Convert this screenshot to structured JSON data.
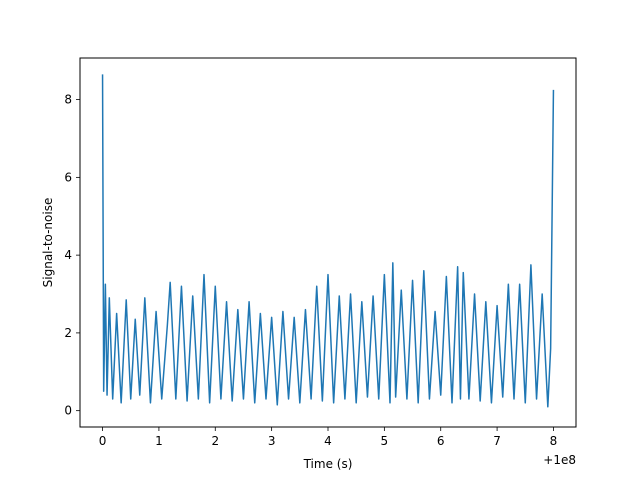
{
  "chart_data": {
    "type": "line",
    "title": "",
    "xlabel": "Time (s)",
    "ylabel": "Signal-to-noise",
    "x_offset_label": "+1e8",
    "xlim": [
      -0.4,
      8.4
    ],
    "ylim": [
      -0.42,
      9.07
    ],
    "xticks": [
      0,
      1,
      2,
      3,
      4,
      5,
      6,
      7,
      8
    ],
    "yticks": [
      0,
      2,
      4,
      6,
      8
    ],
    "grid": false,
    "legend": "none",
    "color": "#1f77b4",
    "series": [
      {
        "x": [
          0.0,
          0.02,
          0.05,
          0.08,
          0.12,
          0.18,
          0.25,
          0.33,
          0.42,
          0.5,
          0.58,
          0.66,
          0.75,
          0.85,
          0.95,
          1.05,
          1.15,
          1.2,
          1.3,
          1.4,
          1.5,
          1.6,
          1.7,
          1.8,
          1.9,
          2.0,
          2.1,
          2.2,
          2.3,
          2.4,
          2.5,
          2.6,
          2.7,
          2.8,
          2.9,
          3.0,
          3.1,
          3.2,
          3.3,
          3.4,
          3.5,
          3.6,
          3.7,
          3.8,
          3.9,
          4.0,
          4.1,
          4.2,
          4.3,
          4.4,
          4.5,
          4.6,
          4.7,
          4.8,
          4.9,
          5.0,
          5.1,
          5.15,
          5.2,
          5.3,
          5.4,
          5.5,
          5.6,
          5.7,
          5.8,
          5.9,
          6.0,
          6.1,
          6.2,
          6.3,
          6.35,
          6.4,
          6.5,
          6.6,
          6.7,
          6.8,
          6.9,
          7.0,
          7.1,
          7.2,
          7.3,
          7.4,
          7.5,
          7.6,
          7.7,
          7.8,
          7.9,
          7.95,
          8.0
        ],
        "y": [
          8.65,
          0.5,
          3.25,
          0.4,
          2.9,
          0.3,
          2.5,
          0.2,
          2.85,
          0.3,
          2.35,
          0.4,
          2.9,
          0.2,
          2.55,
          0.3,
          2.2,
          3.3,
          0.3,
          3.2,
          0.25,
          2.95,
          0.3,
          3.5,
          0.2,
          3.2,
          0.3,
          2.8,
          0.25,
          2.6,
          0.3,
          2.8,
          0.2,
          2.5,
          0.3,
          2.4,
          0.15,
          2.55,
          0.3,
          2.4,
          0.2,
          2.6,
          0.3,
          3.2,
          0.25,
          3.5,
          0.2,
          2.95,
          0.3,
          3.0,
          0.2,
          2.8,
          0.35,
          2.95,
          0.3,
          3.5,
          0.2,
          3.8,
          0.35,
          3.1,
          0.3,
          3.35,
          0.2,
          3.6,
          0.3,
          2.55,
          0.4,
          3.45,
          0.2,
          3.7,
          0.3,
          3.55,
          0.3,
          3.0,
          0.25,
          2.8,
          0.2,
          2.7,
          0.35,
          3.25,
          0.3,
          3.25,
          0.2,
          3.75,
          0.3,
          3.0,
          0.1,
          1.6,
          8.25
        ]
      }
    ]
  }
}
